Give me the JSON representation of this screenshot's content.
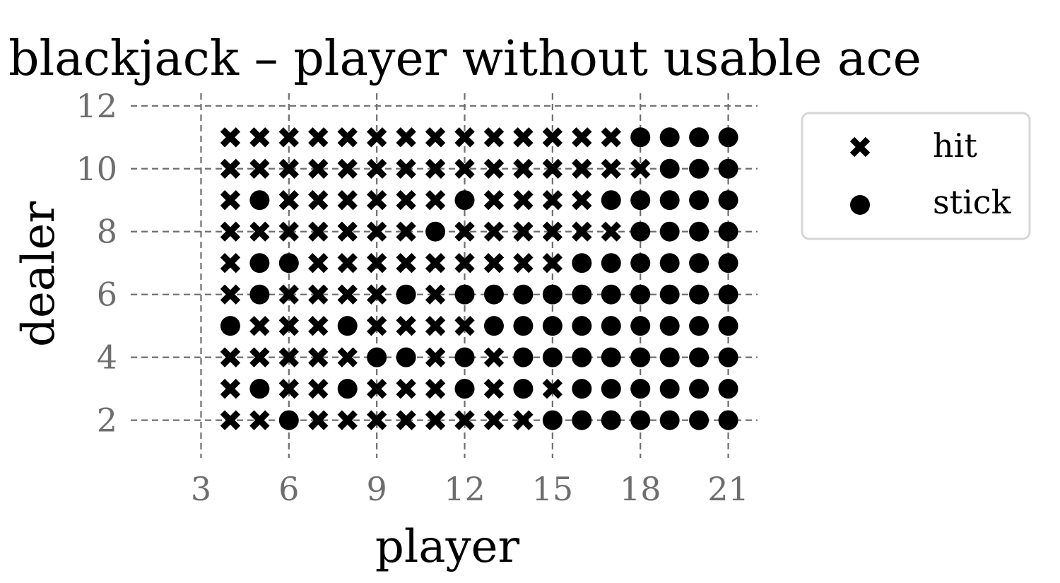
{
  "chart_data": {
    "type": "scatter",
    "title": "blackjack – player without usable ace",
    "xlabel": "player",
    "ylabel": "dealer",
    "xlim": [
      0.6,
      22
    ],
    "ylim": [
      0.8,
      12.4
    ],
    "xticks": [
      3,
      6,
      9,
      12,
      15,
      18,
      21
    ],
    "yticks": [
      2,
      4,
      6,
      8,
      10,
      12
    ],
    "grid": true,
    "grid_style": "dashed",
    "legend_position": "right-outside",
    "series": [
      {
        "name": "hit",
        "marker": "x",
        "color": "#000000",
        "points": [
          [
            4,
            2
          ],
          [
            5,
            2
          ],
          [
            7,
            2
          ],
          [
            8,
            2
          ],
          [
            9,
            2
          ],
          [
            10,
            2
          ],
          [
            11,
            2
          ],
          [
            12,
            2
          ],
          [
            13,
            2
          ],
          [
            14,
            2
          ],
          [
            4,
            3
          ],
          [
            6,
            3
          ],
          [
            7,
            3
          ],
          [
            9,
            3
          ],
          [
            10,
            3
          ],
          [
            11,
            3
          ],
          [
            13,
            3
          ],
          [
            15,
            3
          ],
          [
            4,
            4
          ],
          [
            5,
            4
          ],
          [
            6,
            4
          ],
          [
            7,
            4
          ],
          [
            8,
            4
          ],
          [
            11,
            4
          ],
          [
            13,
            4
          ],
          [
            5,
            5
          ],
          [
            6,
            5
          ],
          [
            7,
            5
          ],
          [
            9,
            5
          ],
          [
            10,
            5
          ],
          [
            11,
            5
          ],
          [
            12,
            5
          ],
          [
            4,
            6
          ],
          [
            6,
            6
          ],
          [
            7,
            6
          ],
          [
            8,
            6
          ],
          [
            9,
            6
          ],
          [
            11,
            6
          ],
          [
            4,
            7
          ],
          [
            7,
            7
          ],
          [
            8,
            7
          ],
          [
            9,
            7
          ],
          [
            10,
            7
          ],
          [
            11,
            7
          ],
          [
            12,
            7
          ],
          [
            13,
            7
          ],
          [
            14,
            7
          ],
          [
            15,
            7
          ],
          [
            4,
            8
          ],
          [
            5,
            8
          ],
          [
            6,
            8
          ],
          [
            7,
            8
          ],
          [
            8,
            8
          ],
          [
            9,
            8
          ],
          [
            10,
            8
          ],
          [
            12,
            8
          ],
          [
            13,
            8
          ],
          [
            14,
            8
          ],
          [
            15,
            8
          ],
          [
            16,
            8
          ],
          [
            17,
            8
          ],
          [
            4,
            9
          ],
          [
            6,
            9
          ],
          [
            7,
            9
          ],
          [
            8,
            9
          ],
          [
            9,
            9
          ],
          [
            10,
            9
          ],
          [
            11,
            9
          ],
          [
            13,
            9
          ],
          [
            14,
            9
          ],
          [
            15,
            9
          ],
          [
            16,
            9
          ],
          [
            4,
            10
          ],
          [
            5,
            10
          ],
          [
            6,
            10
          ],
          [
            7,
            10
          ],
          [
            8,
            10
          ],
          [
            9,
            10
          ],
          [
            10,
            10
          ],
          [
            11,
            10
          ],
          [
            12,
            10
          ],
          [
            13,
            10
          ],
          [
            14,
            10
          ],
          [
            15,
            10
          ],
          [
            16,
            10
          ],
          [
            17,
            10
          ],
          [
            18,
            10
          ],
          [
            4,
            11
          ],
          [
            5,
            11
          ],
          [
            6,
            11
          ],
          [
            7,
            11
          ],
          [
            8,
            11
          ],
          [
            9,
            11
          ],
          [
            10,
            11
          ],
          [
            11,
            11
          ],
          [
            12,
            11
          ],
          [
            13,
            11
          ],
          [
            14,
            11
          ],
          [
            15,
            11
          ],
          [
            16,
            11
          ],
          [
            17,
            11
          ]
        ]
      },
      {
        "name": "stick",
        "marker": "o",
        "color": "#000000",
        "points": [
          [
            6,
            2
          ],
          [
            15,
            2
          ],
          [
            16,
            2
          ],
          [
            17,
            2
          ],
          [
            18,
            2
          ],
          [
            19,
            2
          ],
          [
            20,
            2
          ],
          [
            21,
            2
          ],
          [
            5,
            3
          ],
          [
            8,
            3
          ],
          [
            12,
            3
          ],
          [
            14,
            3
          ],
          [
            16,
            3
          ],
          [
            17,
            3
          ],
          [
            18,
            3
          ],
          [
            19,
            3
          ],
          [
            20,
            3
          ],
          [
            21,
            3
          ],
          [
            9,
            4
          ],
          [
            10,
            4
          ],
          [
            12,
            4
          ],
          [
            14,
            4
          ],
          [
            15,
            4
          ],
          [
            16,
            4
          ],
          [
            17,
            4
          ],
          [
            18,
            4
          ],
          [
            19,
            4
          ],
          [
            20,
            4
          ],
          [
            21,
            4
          ],
          [
            4,
            5
          ],
          [
            8,
            5
          ],
          [
            13,
            5
          ],
          [
            14,
            5
          ],
          [
            15,
            5
          ],
          [
            16,
            5
          ],
          [
            17,
            5
          ],
          [
            18,
            5
          ],
          [
            19,
            5
          ],
          [
            20,
            5
          ],
          [
            21,
            5
          ],
          [
            5,
            6
          ],
          [
            10,
            6
          ],
          [
            12,
            6
          ],
          [
            13,
            6
          ],
          [
            14,
            6
          ],
          [
            15,
            6
          ],
          [
            16,
            6
          ],
          [
            17,
            6
          ],
          [
            18,
            6
          ],
          [
            19,
            6
          ],
          [
            20,
            6
          ],
          [
            21,
            6
          ],
          [
            5,
            7
          ],
          [
            6,
            7
          ],
          [
            16,
            7
          ],
          [
            17,
            7
          ],
          [
            18,
            7
          ],
          [
            19,
            7
          ],
          [
            20,
            7
          ],
          [
            21,
            7
          ],
          [
            11,
            8
          ],
          [
            18,
            8
          ],
          [
            19,
            8
          ],
          [
            20,
            8
          ],
          [
            21,
            8
          ],
          [
            5,
            9
          ],
          [
            12,
            9
          ],
          [
            17,
            9
          ],
          [
            18,
            9
          ],
          [
            19,
            9
          ],
          [
            20,
            9
          ],
          [
            21,
            9
          ],
          [
            19,
            10
          ],
          [
            20,
            10
          ],
          [
            21,
            10
          ],
          [
            18,
            11
          ],
          [
            19,
            11
          ],
          [
            20,
            11
          ],
          [
            21,
            11
          ]
        ]
      }
    ]
  }
}
